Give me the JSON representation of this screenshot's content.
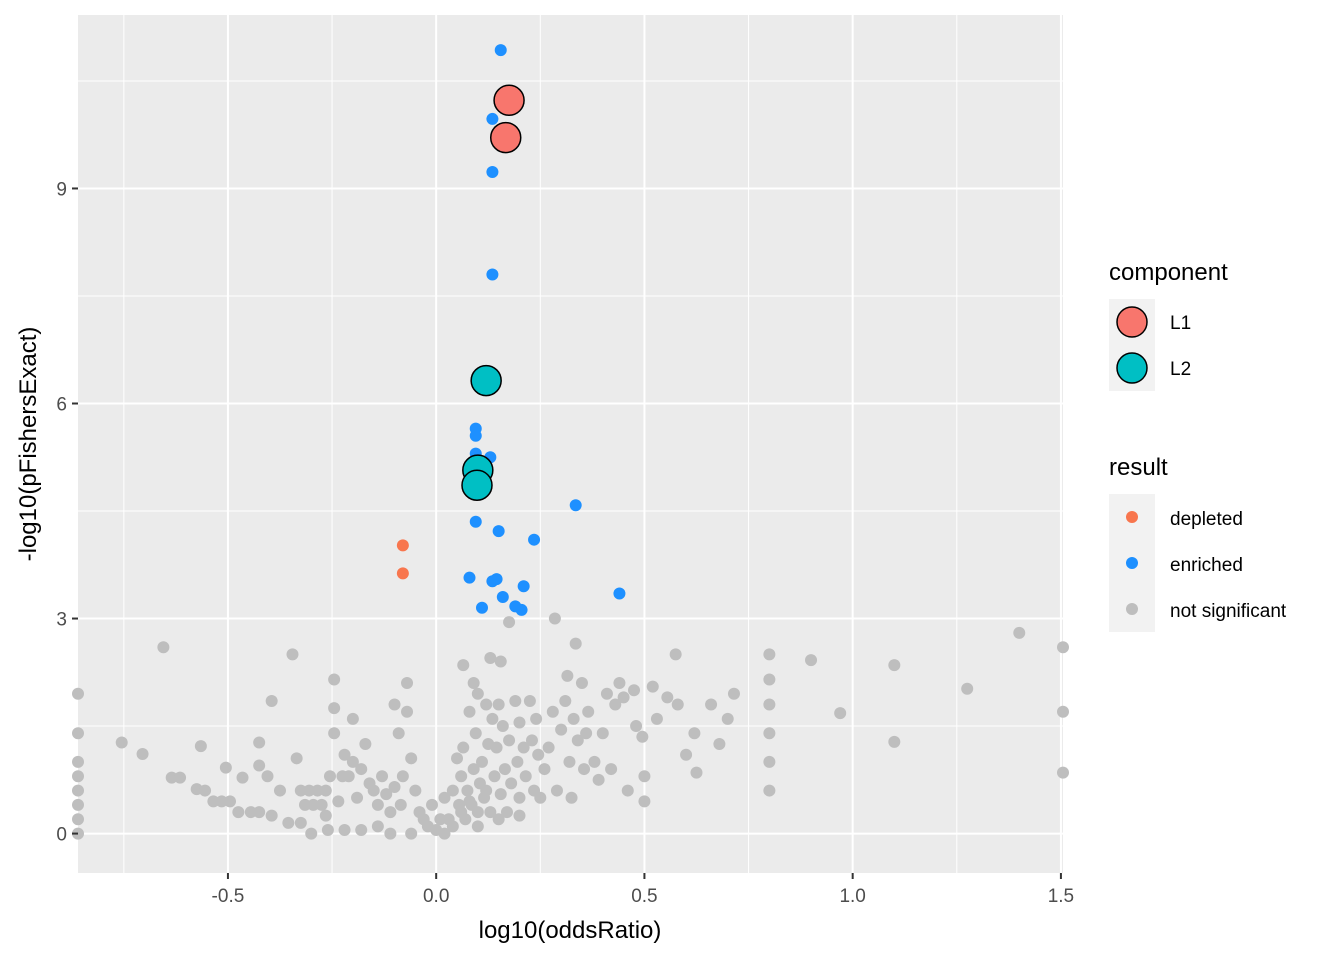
{
  "chart_data": {
    "type": "scatter",
    "xlabel": "log10(oddsRatio)",
    "ylabel": "-log10(pFishersExact)",
    "xlim": [
      -0.86,
      1.505
    ],
    "ylim": [
      -0.55,
      11.42
    ],
    "x_ticks": [
      -0.5,
      0.0,
      0.5,
      1.0,
      1.5
    ],
    "x_tick_labels": [
      "-0.5",
      "0.0",
      "0.5",
      "1.0",
      "1.5"
    ],
    "y_ticks": [
      0,
      3,
      6,
      9
    ],
    "y_tick_labels": [
      "0",
      "3",
      "6",
      "9"
    ],
    "grid": true,
    "legend_placement": "right",
    "colors": {
      "panel": "#ebebeb",
      "grid": "#ffffff",
      "depleted": "#f8764e",
      "enriched": "#1e90ff",
      "not_significant": "#bebebe",
      "L1": "#f8766d",
      "L2": "#00bfc4"
    },
    "legends": {
      "component": {
        "title": "component",
        "items": [
          {
            "label": "L1",
            "color": "#f8766d"
          },
          {
            "label": "L2",
            "color": "#00bfc4"
          }
        ]
      },
      "result": {
        "title": "result",
        "items": [
          {
            "label": "depleted",
            "color": "#f8764e"
          },
          {
            "label": "enriched",
            "color": "#1e90ff"
          },
          {
            "label": "not significant",
            "color": "#bebebe"
          }
        ]
      }
    },
    "series": [
      {
        "name": "not significant",
        "points": [
          [
            -0.86,
            1.95
          ],
          [
            -0.86,
            1.4
          ],
          [
            -0.86,
            1.0
          ],
          [
            -0.86,
            0.8
          ],
          [
            -0.86,
            0.6
          ],
          [
            -0.86,
            0.4
          ],
          [
            -0.86,
            0.2
          ],
          [
            -0.86,
            0.0
          ],
          [
            -0.755,
            1.27
          ],
          [
            -0.705,
            1.11
          ],
          [
            -0.655,
            2.6
          ],
          [
            -0.635,
            0.78
          ],
          [
            -0.615,
            0.78
          ],
          [
            -0.575,
            0.62
          ],
          [
            -0.565,
            1.22
          ],
          [
            -0.555,
            0.6
          ],
          [
            -0.535,
            0.45
          ],
          [
            -0.515,
            0.45
          ],
          [
            -0.505,
            0.92
          ],
          [
            -0.495,
            0.45
          ],
          [
            -0.475,
            0.3
          ],
          [
            -0.465,
            0.78
          ],
          [
            -0.445,
            0.3
          ],
          [
            -0.425,
            0.3
          ],
          [
            -0.425,
            1.27
          ],
          [
            -0.425,
            0.95
          ],
          [
            -0.405,
            0.8
          ],
          [
            -0.395,
            1.85
          ],
          [
            -0.395,
            0.25
          ],
          [
            -0.375,
            0.6
          ],
          [
            -0.355,
            0.15
          ],
          [
            -0.345,
            2.5
          ],
          [
            -0.335,
            1.05
          ],
          [
            -0.325,
            0.15
          ],
          [
            -0.325,
            0.6
          ],
          [
            -0.315,
            0.4
          ],
          [
            -0.305,
            0.6
          ],
          [
            -0.295,
            0.4
          ],
          [
            -0.285,
            0.6
          ],
          [
            -0.275,
            0.4
          ],
          [
            -0.265,
            0.25
          ],
          [
            -0.265,
            0.6
          ],
          [
            -0.255,
            0.8
          ],
          [
            -0.245,
            2.15
          ],
          [
            -0.245,
            1.75
          ],
          [
            -0.245,
            1.4
          ],
          [
            -0.235,
            0.45
          ],
          [
            -0.225,
            0.8
          ],
          [
            -0.22,
            1.1
          ],
          [
            -0.21,
            0.8
          ],
          [
            -0.2,
            1.6
          ],
          [
            -0.2,
            1.0
          ],
          [
            -0.19,
            0.5
          ],
          [
            -0.18,
            0.9
          ],
          [
            -0.17,
            1.25
          ],
          [
            -0.16,
            0.7
          ],
          [
            -0.15,
            0.6
          ],
          [
            -0.14,
            0.4
          ],
          [
            -0.13,
            0.8
          ],
          [
            -0.12,
            0.55
          ],
          [
            -0.11,
            0.3
          ],
          [
            -0.1,
            1.8
          ],
          [
            -0.1,
            0.65
          ],
          [
            -0.09,
            1.4
          ],
          [
            -0.085,
            0.4
          ],
          [
            -0.08,
            0.8
          ],
          [
            -0.07,
            2.1
          ],
          [
            -0.07,
            1.7
          ],
          [
            -0.06,
            1.05
          ],
          [
            -0.05,
            0.6
          ],
          [
            -0.04,
            0.3
          ],
          [
            -0.03,
            0.2
          ],
          [
            -0.02,
            0.1
          ],
          [
            -0.01,
            0.4
          ],
          [
            0.0,
            0.05
          ],
          [
            0.01,
            0.2
          ],
          [
            0.02,
            0.5
          ],
          [
            0.03,
            0.2
          ],
          [
            0.04,
            0.6
          ],
          [
            0.05,
            1.05
          ],
          [
            0.055,
            0.4
          ],
          [
            0.06,
            0.8
          ],
          [
            0.065,
            2.35
          ],
          [
            0.065,
            1.2
          ],
          [
            0.075,
            0.6
          ],
          [
            0.08,
            1.7
          ],
          [
            0.085,
            0.4
          ],
          [
            0.09,
            2.1
          ],
          [
            0.09,
            0.9
          ],
          [
            0.095,
            1.4
          ],
          [
            0.1,
            1.95
          ],
          [
            0.1,
            0.3
          ],
          [
            0.105,
            0.7
          ],
          [
            0.11,
            1.0
          ],
          [
            0.115,
            0.5
          ],
          [
            0.12,
            1.8
          ],
          [
            0.125,
            1.25
          ],
          [
            0.13,
            0.3
          ],
          [
            0.13,
            2.45
          ],
          [
            0.135,
            1.6
          ],
          [
            0.14,
            0.8
          ],
          [
            0.145,
            1.2
          ],
          [
            0.15,
            1.8
          ],
          [
            0.155,
            2.4
          ],
          [
            0.155,
            0.55
          ],
          [
            0.16,
            1.5
          ],
          [
            0.165,
            0.9
          ],
          [
            0.17,
            0.3
          ],
          [
            0.175,
            2.95
          ],
          [
            0.175,
            1.3
          ],
          [
            0.18,
            0.7
          ],
          [
            0.19,
            1.85
          ],
          [
            0.195,
            1.0
          ],
          [
            0.2,
            1.55
          ],
          [
            0.2,
            0.5
          ],
          [
            0.21,
            1.2
          ],
          [
            0.215,
            0.8
          ],
          [
            0.225,
            1.85
          ],
          [
            0.23,
            1.3
          ],
          [
            0.235,
            0.6
          ],
          [
            0.24,
            1.6
          ],
          [
            0.245,
            1.1
          ],
          [
            0.25,
            0.5
          ],
          [
            0.26,
            0.9
          ],
          [
            0.27,
            1.2
          ],
          [
            0.28,
            1.7
          ],
          [
            0.285,
            3.0
          ],
          [
            0.29,
            0.6
          ],
          [
            0.3,
            1.45
          ],
          [
            0.31,
            1.85
          ],
          [
            0.315,
            2.2
          ],
          [
            0.32,
            1.0
          ],
          [
            0.325,
            0.5
          ],
          [
            0.33,
            1.6
          ],
          [
            0.335,
            2.65
          ],
          [
            0.34,
            1.3
          ],
          [
            0.35,
            2.1
          ],
          [
            0.355,
            0.9
          ],
          [
            0.36,
            1.4
          ],
          [
            0.365,
            1.7
          ],
          [
            0.38,
            1.0
          ],
          [
            0.39,
            0.75
          ],
          [
            0.4,
            1.4
          ],
          [
            0.41,
            1.95
          ],
          [
            0.42,
            0.9
          ],
          [
            0.43,
            1.8
          ],
          [
            0.44,
            2.1
          ],
          [
            0.45,
            1.9
          ],
          [
            0.46,
            0.6
          ],
          [
            0.475,
            2.0
          ],
          [
            0.48,
            1.5
          ],
          [
            0.495,
            1.35
          ],
          [
            0.5,
            0.45
          ],
          [
            0.5,
            0.8
          ],
          [
            0.52,
            2.05
          ],
          [
            0.53,
            1.6
          ],
          [
            0.555,
            1.9
          ],
          [
            0.575,
            2.5
          ],
          [
            0.58,
            1.8
          ],
          [
            0.6,
            1.1
          ],
          [
            0.62,
            1.4
          ],
          [
            0.625,
            0.85
          ],
          [
            0.66,
            1.8
          ],
          [
            0.68,
            1.25
          ],
          [
            0.7,
            1.6
          ],
          [
            0.715,
            1.95
          ],
          [
            0.8,
            2.5
          ],
          [
            0.8,
            2.15
          ],
          [
            0.8,
            1.8
          ],
          [
            0.8,
            1.4
          ],
          [
            0.8,
            1.0
          ],
          [
            0.8,
            0.6
          ],
          [
            0.9,
            2.42
          ],
          [
            0.97,
            1.68
          ],
          [
            1.1,
            2.35
          ],
          [
            1.1,
            1.28
          ],
          [
            1.275,
            2.02
          ],
          [
            1.4,
            2.8
          ],
          [
            1.505,
            2.6
          ],
          [
            1.505,
            1.7
          ],
          [
            1.505,
            0.85
          ],
          [
            -0.3,
            0.0
          ],
          [
            -0.26,
            0.05
          ],
          [
            -0.22,
            0.05
          ],
          [
            -0.18,
            0.05
          ],
          [
            -0.14,
            0.1
          ],
          [
            -0.11,
            0.0
          ],
          [
            -0.06,
            0.0
          ],
          [
            0.02,
            0.0
          ],
          [
            0.04,
            0.1
          ],
          [
            0.07,
            0.2
          ],
          [
            0.1,
            0.1
          ],
          [
            0.15,
            0.2
          ],
          [
            0.2,
            0.25
          ],
          [
            0.06,
            0.3
          ],
          [
            0.08,
            0.45
          ],
          [
            0.12,
            0.6
          ]
        ]
      },
      {
        "name": "enriched",
        "points": [
          [
            0.155,
            10.93
          ],
          [
            0.135,
            9.97
          ],
          [
            0.135,
            9.23
          ],
          [
            0.135,
            7.8
          ],
          [
            0.095,
            5.65
          ],
          [
            0.095,
            5.55
          ],
          [
            0.095,
            5.3
          ],
          [
            0.13,
            5.25
          ],
          [
            0.095,
            4.35
          ],
          [
            0.15,
            4.22
          ],
          [
            0.235,
            4.1
          ],
          [
            0.335,
            4.58
          ],
          [
            0.08,
            3.57
          ],
          [
            0.135,
            3.52
          ],
          [
            0.145,
            3.55
          ],
          [
            0.21,
            3.45
          ],
          [
            0.16,
            3.3
          ],
          [
            0.44,
            3.35
          ],
          [
            0.11,
            3.15
          ],
          [
            0.19,
            3.17
          ],
          [
            0.205,
            3.12
          ]
        ]
      },
      {
        "name": "depleted",
        "points": [
          [
            -0.08,
            4.02
          ],
          [
            -0.08,
            3.63
          ]
        ]
      }
    ],
    "highlighted": [
      {
        "component": "L1",
        "x": 0.175,
        "y": 10.23
      },
      {
        "component": "L1",
        "x": 0.167,
        "y": 9.71
      },
      {
        "component": "L2",
        "x": 0.12,
        "y": 6.32
      },
      {
        "component": "L2",
        "x": 0.1,
        "y": 5.07
      },
      {
        "component": "L2",
        "x": 0.098,
        "y": 4.86
      }
    ]
  }
}
